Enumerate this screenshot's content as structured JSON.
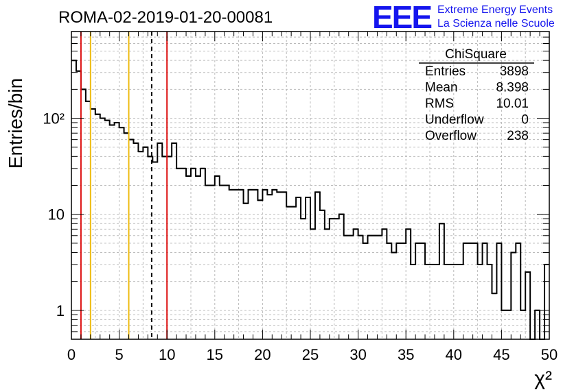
{
  "header": {
    "title": "ROMA-02-2019-01-20-00081",
    "logo_text": "EEE",
    "logo_line1": "Extreme Energy Events",
    "logo_line2": "La Scienza nelle Scuole"
  },
  "stats_box": {
    "title": "ChiSquare",
    "rows": [
      {
        "label": "Entries",
        "value": "3898"
      },
      {
        "label": "Mean",
        "value": "8.398"
      },
      {
        "label": "RMS",
        "value": "10.01"
      },
      {
        "label": "Underflow",
        "value": "0"
      },
      {
        "label": "Overflow",
        "value": "238"
      }
    ]
  },
  "colors": {
    "histogram": "#000000",
    "red_lines": "#dd1111",
    "yellow_lines": "#eebb11",
    "mean_line": "#000000",
    "grid": "#bbbbbb",
    "logo": "#1515ee"
  },
  "chart_data": {
    "type": "histogram",
    "title": "ROMA-02-2019-01-20-00081",
    "xlabel": "χ²",
    "ylabel": "Entries/bin",
    "xlim": [
      0,
      50
    ],
    "ylim": [
      0.5,
      800
    ],
    "yscale": "log",
    "grid": true,
    "bin_width": 0.5,
    "bin_start": 0,
    "values": [
      400,
      310,
      200,
      150,
      125,
      110,
      100,
      95,
      85,
      90,
      80,
      70,
      60,
      55,
      45,
      50,
      40,
      35,
      55,
      40,
      40,
      55,
      30,
      30,
      25,
      30,
      25,
      30,
      20,
      20,
      25,
      20,
      20,
      18,
      18,
      18,
      13,
      18,
      18,
      14,
      18,
      16,
      18,
      17,
      17,
      12,
      12,
      15,
      9,
      15,
      7,
      17,
      11,
      7,
      9,
      9,
      10,
      6,
      6,
      7,
      6,
      5,
      6,
      6,
      6,
      7,
      5,
      4,
      5,
      5,
      7,
      3,
      5,
      5,
      3,
      3,
      3,
      8,
      3,
      3,
      3,
      3,
      5,
      5,
      5,
      3,
      5,
      3,
      1.5,
      5,
      1,
      1,
      4,
      5,
      1,
      2.5,
      0.5,
      1,
      0.5,
      3
    ],
    "x_ticks": [
      "0",
      "5",
      "10",
      "15",
      "20",
      "25",
      "30",
      "35",
      "40",
      "45",
      "50"
    ],
    "y_ticks": [
      "1",
      "10",
      "10²"
    ],
    "vertical_lines": [
      {
        "x": 1,
        "color": "red",
        "style": "solid"
      },
      {
        "x": 2,
        "color": "yellow",
        "style": "solid"
      },
      {
        "x": 6,
        "color": "yellow",
        "style": "solid"
      },
      {
        "x": 8.398,
        "color": "black",
        "style": "dashed"
      },
      {
        "x": 10,
        "color": "red",
        "style": "solid"
      }
    ]
  }
}
